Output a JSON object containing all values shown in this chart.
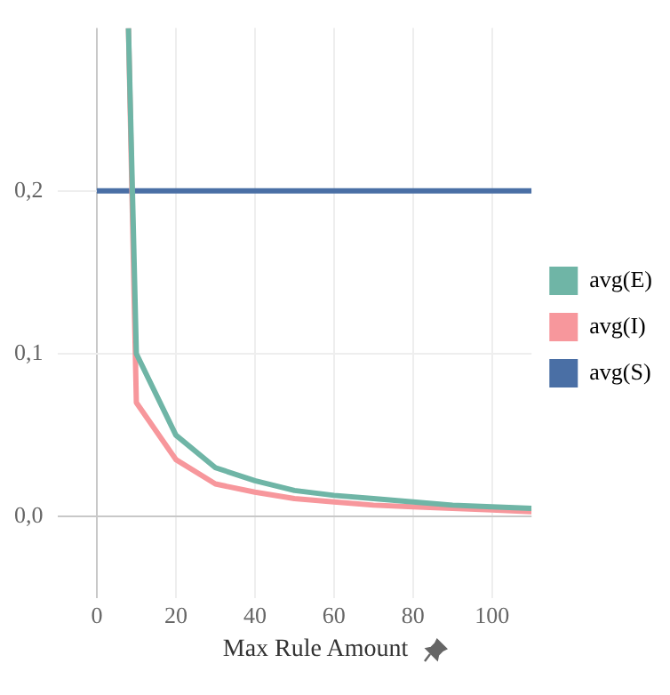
{
  "chart_data": {
    "type": "line",
    "xlabel": "Max Rule Amount",
    "series": [
      {
        "name": "avg(E)",
        "color": "#6fb5a6",
        "x": [
          8,
          10,
          20,
          30,
          40,
          50,
          60,
          70,
          80,
          90,
          100,
          110
        ],
        "values": [
          0.3,
          0.1,
          0.05,
          0.03,
          0.022,
          0.016,
          0.013,
          0.011,
          0.009,
          0.007,
          0.006,
          0.005
        ]
      },
      {
        "name": "avg(I)",
        "color": "#f7979c",
        "x": [
          8,
          10,
          20,
          30,
          40,
          50,
          60,
          70,
          80,
          90,
          100,
          110
        ],
        "values": [
          0.3,
          0.07,
          0.035,
          0.02,
          0.015,
          0.011,
          0.009,
          0.007,
          0.006,
          0.005,
          0.004,
          0.003
        ]
      },
      {
        "name": "avg(S)",
        "color": "#4a6fa5",
        "x": [
          0,
          110
        ],
        "values": [
          0.2,
          0.2
        ]
      }
    ],
    "xlim": [
      -10,
      110
    ],
    "xticks": [
      0,
      20,
      40,
      60,
      80,
      100
    ],
    "ylim": [
      -0.05,
      0.3
    ],
    "yticks": [
      {
        "value": 0,
        "label": "0,0"
      },
      {
        "value": 0.1,
        "label": "0,1"
      },
      {
        "value": 0.2,
        "label": "0,2"
      }
    ],
    "grid": true,
    "legend": "right",
    "marker": "none",
    "line_style": "solid"
  }
}
